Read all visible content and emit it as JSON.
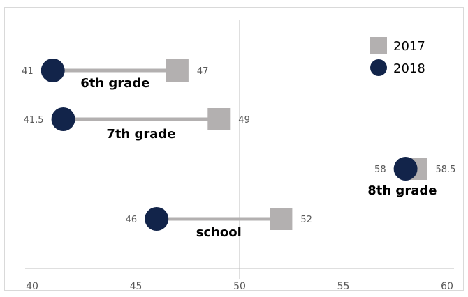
{
  "chart_data": {
    "type": "dumbbell",
    "xlim": [
      40,
      60
    ],
    "x_ticks": [
      "40",
      "45",
      "50",
      "55",
      "60"
    ],
    "reference_line": 50,
    "grid": false,
    "legend_position": "top-right",
    "series": [
      {
        "name": "2017",
        "marker": "square",
        "color": "#b3b0b0"
      },
      {
        "name": "2018",
        "marker": "circle",
        "color": "#12244a"
      }
    ],
    "categories": [
      {
        "label": "6th grade",
        "y": 3.0,
        "v2017": 47,
        "v2018": 41,
        "l2017": "47",
        "l2018": "41"
      },
      {
        "label": "7th grade",
        "y": 2.0,
        "v2017": 49,
        "v2018": 41.5,
        "l2017": "49",
        "l2018": "41.5"
      },
      {
        "label": "8th grade",
        "y": 1.0,
        "v2017": 58.5,
        "v2018": 58,
        "l2017": "58.5",
        "l2018": "58"
      },
      {
        "label": "school",
        "y": 0.0,
        "v2017": 52,
        "v2018": 46,
        "l2017": "52",
        "l2018": "46"
      }
    ],
    "connector_color": "#b3b0b0"
  }
}
